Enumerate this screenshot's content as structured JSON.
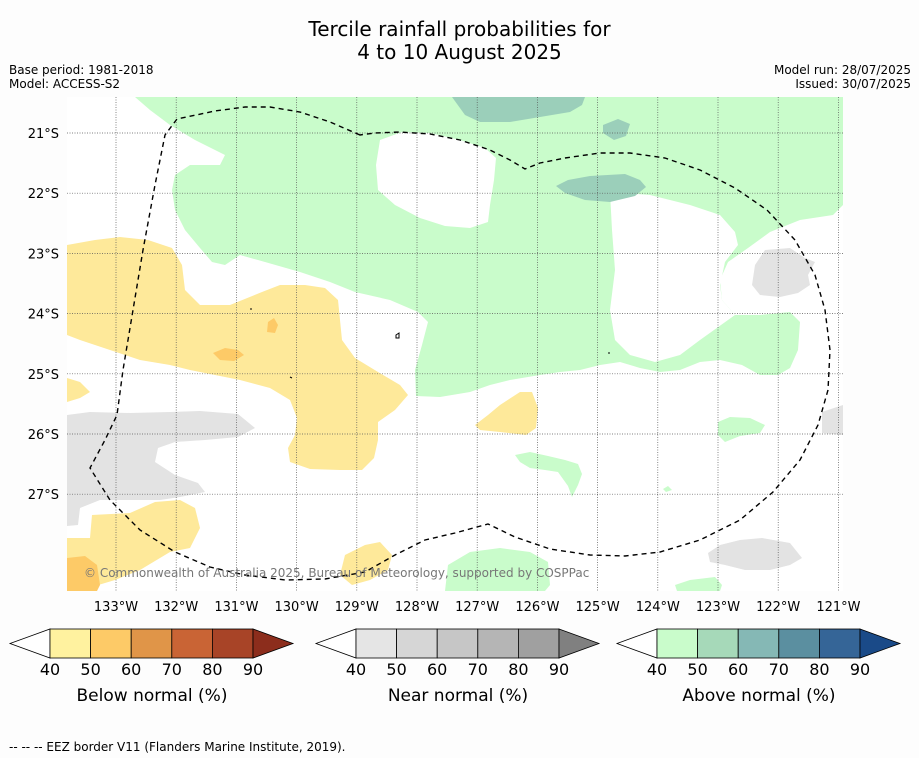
{
  "title": {
    "line1": "Tercile rainfall probabilities for",
    "line2": "4 to 10 August 2025"
  },
  "meta": {
    "base_period": "Base period: 1981-2018",
    "model": "Model: ACCESS-S2",
    "model_run": "Model run: 28/07/2025",
    "issued": "Issued: 30/07/2025"
  },
  "map": {
    "lat_labels": [
      "21°S",
      "22°S",
      "23°S",
      "24°S",
      "25°S",
      "26°S",
      "27°S"
    ],
    "lon_labels": [
      "133°W",
      "132°W",
      "131°W",
      "130°W",
      "129°W",
      "128°W",
      "127°W",
      "126°W",
      "125°W",
      "124°W",
      "123°W",
      "122°W",
      "121°W"
    ],
    "copyright": "© Commonwealth of Australia 2025, Bureau of Meteorology, supported by COSPPac",
    "colors": {
      "below_40": "#fee99a",
      "below_50": "#fdca67",
      "near_40": "#e3e3e3",
      "above_40": "#c9fccb",
      "above_50": "#a6d9b9",
      "above_60": "#9bcfba"
    }
  },
  "colorbars": [
    {
      "title": "Below normal (%)",
      "ticks": [
        "40",
        "50",
        "60",
        "70",
        "80",
        "90"
      ],
      "colors": [
        "#fff29f",
        "#fdca67",
        "#e09548",
        "#c96435",
        "#a84427",
        "#8c2d1c"
      ]
    },
    {
      "title": "Near normal (%)",
      "ticks": [
        "40",
        "50",
        "60",
        "70",
        "80",
        "90"
      ],
      "colors": [
        "#e5e5e5",
        "#d6d6d6",
        "#c6c6c6",
        "#b5b5b5",
        "#a0a0a0",
        "#808080"
      ]
    },
    {
      "title": "Above normal (%)",
      "ticks": [
        "40",
        "50",
        "60",
        "70",
        "80",
        "90"
      ],
      "colors": [
        "#c9fccb",
        "#a6d9b9",
        "#85b8b5",
        "#5b8fa0",
        "#356597",
        "#1a4a88"
      ]
    }
  ],
  "footer": "--  --  -- EEZ border V11 (Flanders Marine Institute, 2019)."
}
